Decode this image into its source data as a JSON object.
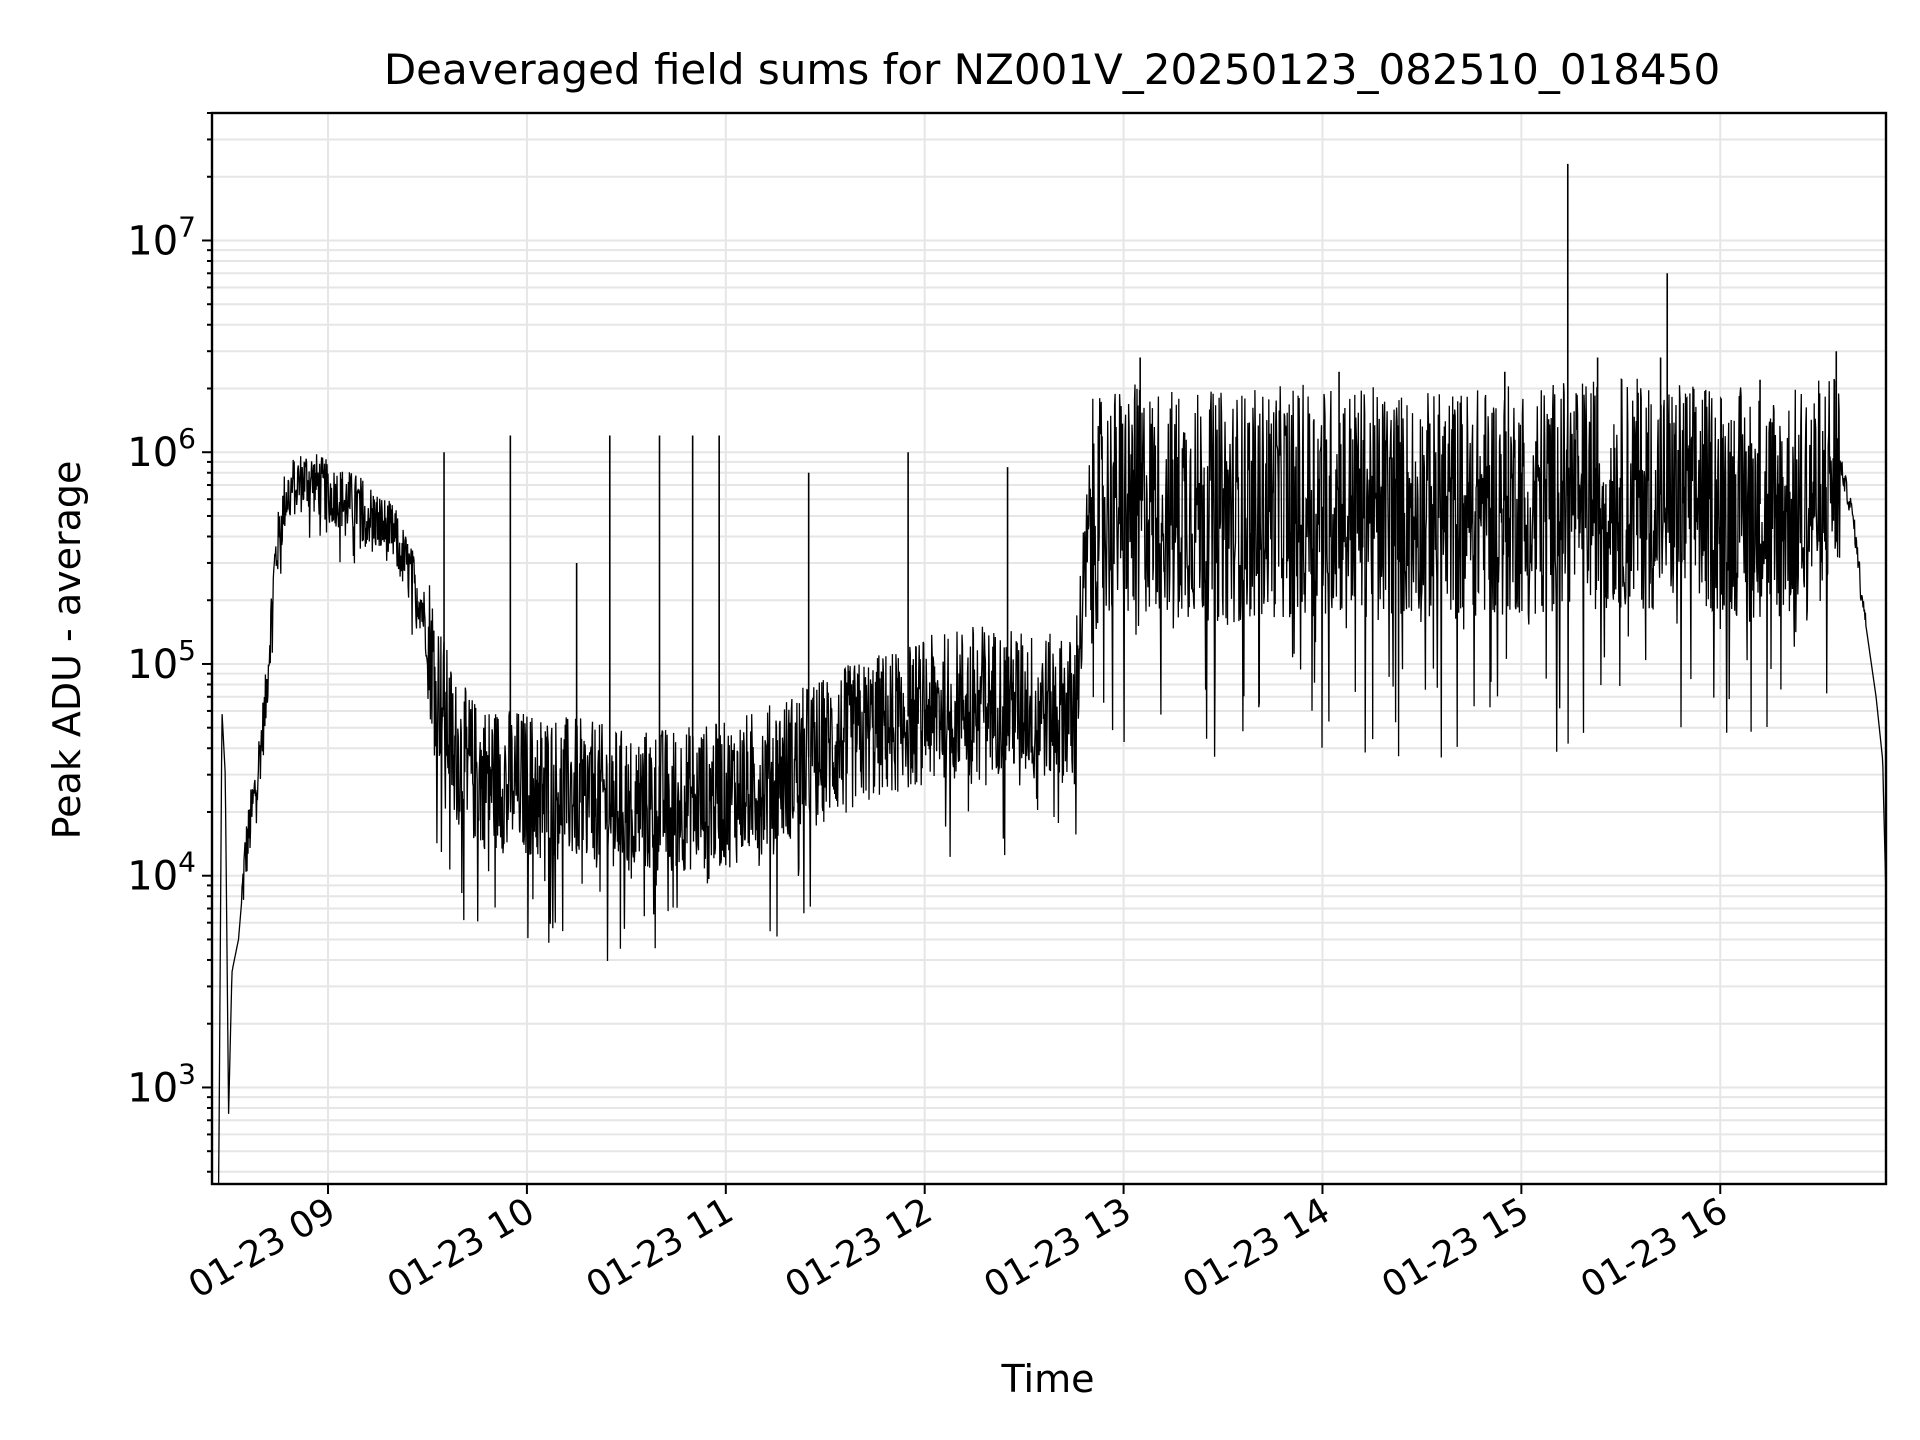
{
  "chart_data": {
    "type": "line",
    "title": "Deaveraged field sums for NZ001V_20250123_082510_018450",
    "xlabel": "Time",
    "ylabel": "Peak ADU - average",
    "yscale": "log",
    "ylim": [
      350,
      40000000
    ],
    "xlim": [
      "2025-01-23 08:25",
      "2025-01-23 16:50"
    ],
    "grid": true,
    "line_color": "#000000",
    "grid_color": "#e6e6e6",
    "x_ticks": [
      {
        "value": "2025-01-23 09:00",
        "label": "01-23 09"
      },
      {
        "value": "2025-01-23 10:00",
        "label": "01-23 10"
      },
      {
        "value": "2025-01-23 11:00",
        "label": "01-23 11"
      },
      {
        "value": "2025-01-23 12:00",
        "label": "01-23 12"
      },
      {
        "value": "2025-01-23 13:00",
        "label": "01-23 13"
      },
      {
        "value": "2025-01-23 14:00",
        "label": "01-23 14"
      },
      {
        "value": "2025-01-23 15:00",
        "label": "01-23 15"
      },
      {
        "value": "2025-01-23 16:00",
        "label": "01-23 16"
      }
    ],
    "y_ticks": [
      {
        "value": 1000,
        "base": "10",
        "exp": "3"
      },
      {
        "value": 10000,
        "base": "10",
        "exp": "4"
      },
      {
        "value": 100000,
        "base": "10",
        "exp": "5"
      },
      {
        "value": 1000000,
        "base": "10",
        "exp": "6"
      },
      {
        "value": 10000000,
        "base": "10",
        "exp": "7"
      }
    ],
    "series": [
      {
        "x": [
          "2025-01-23 08:27",
          "2025-01-23 08:28",
          "2025-01-23 08:29",
          "2025-01-23 08:30",
          "2025-01-23 08:31",
          "2025-01-23 08:33",
          "2025-01-23 08:35",
          "2025-01-23 08:38",
          "2025-01-23 08:41",
          "2025-01-23 08:44",
          "2025-01-23 08:47",
          "2025-01-23 08:50",
          "2025-01-23 08:54",
          "2025-01-23 09:00",
          "2025-01-23 09:10",
          "2025-01-23 09:20",
          "2025-01-23 09:28",
          "2025-01-23 09:33",
          "2025-01-23 09:38",
          "2025-01-23 09:45",
          "2025-01-23 09:55",
          "2025-01-23 10:10",
          "2025-01-23 10:20",
          "2025-01-23 10:30",
          "2025-01-23 10:45",
          "2025-01-23 11:00",
          "2025-01-23 11:15",
          "2025-01-23 11:30",
          "2025-01-23 11:45",
          "2025-01-23 12:00",
          "2025-01-23 12:15",
          "2025-01-23 12:30",
          "2025-01-23 12:45",
          "2025-01-23 12:50",
          "2025-01-23 13:00",
          "2025-01-23 13:30",
          "2025-01-23 14:00",
          "2025-01-23 14:30",
          "2025-01-23 15:00",
          "2025-01-23 15:30",
          "2025-01-23 16:00",
          "2025-01-23 16:20",
          "2025-01-23 16:30",
          "2025-01-23 16:36",
          "2025-01-23 16:40",
          "2025-01-23 16:44",
          "2025-01-23 16:47",
          "2025-01-23 16:49",
          "2025-01-23 16:50"
        ],
        "y": [
          300,
          60000,
          30000,
          750,
          3500,
          5000,
          12000,
          25000,
          60000,
          300000,
          600000,
          700000,
          750000,
          650000,
          550000,
          400000,
          200000,
          80000,
          40000,
          30000,
          28000,
          26000,
          24000,
          22000,
          23000,
          24000,
          30000,
          40000,
          50000,
          60000,
          70000,
          65000,
          60000,
          500000,
          600000,
          550000,
          600000,
          550000,
          600000,
          650000,
          600000,
          550000,
          650000,
          900000,
          500000,
          150000,
          70000,
          35000,
          8000
        ]
      }
    ],
    "spikes": [
      {
        "x": "2025-01-23 09:35",
        "y": 1000000
      },
      {
        "x": "2025-01-23 09:55",
        "y": 1200000
      },
      {
        "x": "2025-01-23 10:15",
        "y": 300000
      },
      {
        "x": "2025-01-23 10:25",
        "y": 1200000
      },
      {
        "x": "2025-01-23 10:40",
        "y": 1200000
      },
      {
        "x": "2025-01-23 10:50",
        "y": 1200000
      },
      {
        "x": "2025-01-23 10:58",
        "y": 1200000
      },
      {
        "x": "2025-01-23 11:25",
        "y": 800000
      },
      {
        "x": "2025-01-23 11:55",
        "y": 1000000
      },
      {
        "x": "2025-01-23 12:25",
        "y": 850000
      },
      {
        "x": "2025-01-23 13:05",
        "y": 2800000
      },
      {
        "x": "2025-01-23 14:05",
        "y": 2400000
      },
      {
        "x": "2025-01-23 14:55",
        "y": 2400000
      },
      {
        "x": "2025-01-23 15:14",
        "y": 23000000
      },
      {
        "x": "2025-01-23 15:23",
        "y": 2800000
      },
      {
        "x": "2025-01-23 15:42",
        "y": 2800000
      },
      {
        "x": "2025-01-23 15:44",
        "y": 7000000
      },
      {
        "x": "2025-01-23 16:12",
        "y": 2200000
      },
      {
        "x": "2025-01-23 16:35",
        "y": 3000000
      }
    ]
  }
}
